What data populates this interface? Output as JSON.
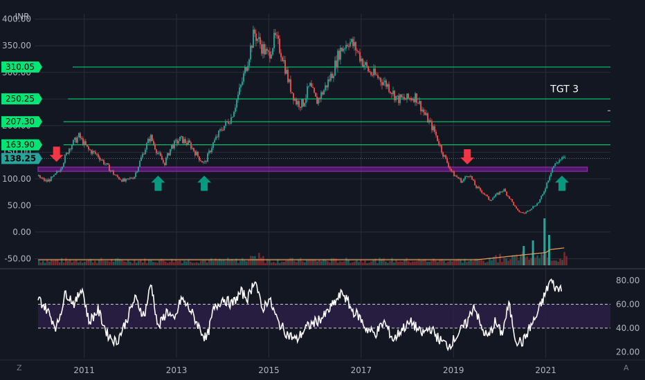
{
  "chart_data": [
    {
      "type": "candlestick",
      "currency_label": "INR",
      "ylim": [
        -65,
        410
      ],
      "y_ticks": [
        "-50.00",
        "0.00",
        "50.00",
        "100.00",
        "150.00",
        "200.00",
        "250.00",
        "300.00",
        "350.00",
        "400.00"
      ],
      "y_tick_values": [
        -50,
        0,
        50,
        100,
        150,
        200,
        250,
        300,
        350,
        400
      ],
      "x_ticks": [
        "2011",
        "2013",
        "2015",
        "2017",
        "2019",
        "2021"
      ],
      "x_tick_values": [
        2011,
        2013,
        2015,
        2017,
        2019,
        2021
      ],
      "xlim": [
        2010.0,
        2022.4
      ],
      "current_price": {
        "label": "138.25",
        "value": 138.25,
        "color": "#26a69a"
      },
      "levels": [
        {
          "label": "310.05",
          "value": 310.05,
          "from": 2010.75,
          "color": "#00e676"
        },
        {
          "label": "250.25",
          "value": 250.25,
          "from": 2010.65,
          "color": "#00e676"
        },
        {
          "label": "207.30",
          "value": 207.3,
          "from": 2010.55,
          "color": "#00e676"
        },
        {
          "label": "163.90",
          "value": 163.9,
          "from": 2010.55,
          "color": "#00e676"
        }
      ],
      "support_zone": {
        "from_x": 2010.0,
        "to_x": 2021.9,
        "y1": 114,
        "y2": 122,
        "color": "#9c27b0"
      },
      "annotations": [
        {
          "text": "TGT 3",
          "x": 2021.1,
          "y": 263
        }
      ],
      "arrows": [
        {
          "dir": "down",
          "x": 2010.4,
          "y": 145,
          "color": "#f23645"
        },
        {
          "dir": "up",
          "x": 2012.6,
          "y": 93,
          "color": "#089981"
        },
        {
          "dir": "up",
          "x": 2013.6,
          "y": 93,
          "color": "#089981"
        },
        {
          "dir": "down",
          "x": 2019.3,
          "y": 140,
          "color": "#f23645"
        },
        {
          "dir": "up",
          "x": 2021.35,
          "y": 93,
          "color": "#089981"
        }
      ],
      "price_path": [
        [
          2010.0,
          105
        ],
        [
          2010.2,
          95
        ],
        [
          2010.35,
          103
        ],
        [
          2010.5,
          120
        ],
        [
          2010.7,
          160
        ],
        [
          2010.9,
          180
        ],
        [
          2011.1,
          155
        ],
        [
          2011.3,
          145
        ],
        [
          2011.5,
          125
        ],
        [
          2011.7,
          105
        ],
        [
          2011.9,
          95
        ],
        [
          2012.1,
          105
        ],
        [
          2012.3,
          150
        ],
        [
          2012.45,
          180
        ],
        [
          2012.6,
          150
        ],
        [
          2012.75,
          128
        ],
        [
          2012.9,
          160
        ],
        [
          2013.1,
          175
        ],
        [
          2013.3,
          165
        ],
        [
          2013.5,
          140
        ],
        [
          2013.62,
          128
        ],
        [
          2013.8,
          165
        ],
        [
          2014.0,
          195
        ],
        [
          2014.2,
          215
        ],
        [
          2014.4,
          270
        ],
        [
          2014.55,
          320
        ],
        [
          2014.7,
          375
        ],
        [
          2014.85,
          350
        ],
        [
          2015.0,
          330
        ],
        [
          2015.15,
          365
        ],
        [
          2015.3,
          335
        ],
        [
          2015.45,
          280
        ],
        [
          2015.6,
          245
        ],
        [
          2015.75,
          240
        ],
        [
          2015.9,
          275
        ],
        [
          2016.05,
          245
        ],
        [
          2016.2,
          265
        ],
        [
          2016.4,
          300
        ],
        [
          2016.55,
          340
        ],
        [
          2016.75,
          360
        ],
        [
          2016.9,
          345
        ],
        [
          2017.05,
          320
        ],
        [
          2017.2,
          300
        ],
        [
          2017.4,
          290
        ],
        [
          2017.6,
          275
        ],
        [
          2017.8,
          250
        ],
        [
          2018.0,
          250
        ],
        [
          2018.2,
          255
        ],
        [
          2018.4,
          220
        ],
        [
          2018.6,
          190
        ],
        [
          2018.8,
          145
        ],
        [
          2019.0,
          110
        ],
        [
          2019.2,
          95
        ],
        [
          2019.35,
          110
        ],
        [
          2019.5,
          85
        ],
        [
          2019.65,
          75
        ],
        [
          2019.8,
          60
        ],
        [
          2019.95,
          70
        ],
        [
          2020.1,
          80
        ],
        [
          2020.25,
          62
        ],
        [
          2020.4,
          40
        ],
        [
          2020.55,
          35
        ],
        [
          2020.7,
          45
        ],
        [
          2020.85,
          55
        ],
        [
          2020.95,
          70
        ],
        [
          2021.05,
          95
        ],
        [
          2021.15,
          120
        ],
        [
          2021.3,
          135
        ],
        [
          2021.4,
          138
        ]
      ],
      "volume_spikes": [
        [
          2020.95,
          0.85
        ],
        [
          2021.05,
          0.55
        ],
        [
          2020.7,
          0.45
        ],
        [
          2020.5,
          0.35
        ]
      ]
    },
    {
      "type": "line",
      "indicator": "oscillator",
      "ylim": [
        15,
        88
      ],
      "y_ticks": [
        "20.00",
        "40.00",
        "60.00",
        "80.00"
      ],
      "y_tick_values": [
        20,
        40,
        60,
        80
      ],
      "band": [
        40,
        60
      ],
      "colors": {
        "line": "#ffffff",
        "band": "#2a1f45",
        "band_lines": "#d1d4dc"
      },
      "series": [
        [
          2010.0,
          65
        ],
        [
          2010.2,
          55
        ],
        [
          2010.4,
          40
        ],
        [
          2010.6,
          70
        ],
        [
          2010.8,
          60
        ],
        [
          2010.95,
          75
        ],
        [
          2011.1,
          45
        ],
        [
          2011.3,
          55
        ],
        [
          2011.5,
          35
        ],
        [
          2011.7,
          28
        ],
        [
          2011.9,
          45
        ],
        [
          2012.1,
          65
        ],
        [
          2012.3,
          50
        ],
        [
          2012.45,
          78
        ],
        [
          2012.6,
          40
        ],
        [
          2012.8,
          55
        ],
        [
          2012.95,
          45
        ],
        [
          2013.1,
          65
        ],
        [
          2013.3,
          55
        ],
        [
          2013.5,
          40
        ],
        [
          2013.65,
          30
        ],
        [
          2013.8,
          55
        ],
        [
          2014.0,
          65
        ],
        [
          2014.2,
          60
        ],
        [
          2014.4,
          70
        ],
        [
          2014.55,
          65
        ],
        [
          2014.7,
          82
        ],
        [
          2014.85,
          55
        ],
        [
          2015.0,
          65
        ],
        [
          2015.2,
          45
        ],
        [
          2015.4,
          35
        ],
        [
          2015.6,
          30
        ],
        [
          2015.8,
          40
        ],
        [
          2016.0,
          45
        ],
        [
          2016.2,
          50
        ],
        [
          2016.4,
          60
        ],
        [
          2016.6,
          70
        ],
        [
          2016.8,
          55
        ],
        [
          2016.95,
          50
        ],
        [
          2017.1,
          40
        ],
        [
          2017.3,
          35
        ],
        [
          2017.5,
          45
        ],
        [
          2017.7,
          30
        ],
        [
          2017.9,
          40
        ],
        [
          2018.1,
          45
        ],
        [
          2018.3,
          35
        ],
        [
          2018.5,
          40
        ],
        [
          2018.7,
          30
        ],
        [
          2018.9,
          25
        ],
        [
          2019.1,
          35
        ],
        [
          2019.3,
          45
        ],
        [
          2019.45,
          60
        ],
        [
          2019.6,
          40
        ],
        [
          2019.75,
          32
        ],
        [
          2019.9,
          45
        ],
        [
          2020.05,
          35
        ],
        [
          2020.2,
          60
        ],
        [
          2020.35,
          30
        ],
        [
          2020.5,
          28
        ],
        [
          2020.65,
          40
        ],
        [
          2020.8,
          50
        ],
        [
          2020.95,
          65
        ],
        [
          2021.1,
          80
        ],
        [
          2021.25,
          72
        ],
        [
          2021.35,
          75
        ]
      ]
    }
  ],
  "ui": {
    "tz_button": "Z",
    "scale_button": "A"
  }
}
